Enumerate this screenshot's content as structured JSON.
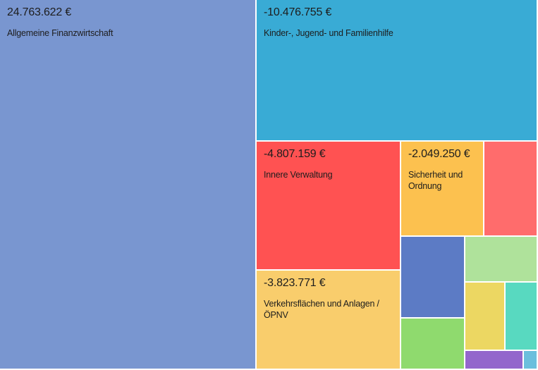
{
  "chart_data": {
    "type": "treemap",
    "title": "",
    "items": [
      {
        "name": "Allgemeine Finanzwirtschaft",
        "value": 24763622,
        "display_value": "24.763.622 €",
        "label": "Allgemeine Finanzwirtschaft",
        "color": "#7996d0"
      },
      {
        "name": "Kinder-, Jugend- und Familienhilfe",
        "value": -10476755,
        "display_value": "-10.476.755 €",
        "label": "Kinder-, Jugend- und Familienhilfe",
        "color": "#39abd5"
      },
      {
        "name": "Innere Verwaltung",
        "value": -4807159,
        "display_value": "-4.807.159 €",
        "label": "Innere Verwaltung",
        "color": "#ff5252"
      },
      {
        "name": "Sicherheit und Ordnung",
        "value": -2049250,
        "display_value": "-2.049.250 €",
        "label": "Sicherheit und Ordnung",
        "color": "#fcc14f"
      },
      {
        "name": "Verkehrsflächen und Anlagen / ÖPNV",
        "value": -3823771,
        "display_value": "-3.823.771 €",
        "label": "Verkehrsflächen und Anlagen / ÖPNV",
        "color": "#f9cd6c"
      },
      {
        "name": "",
        "value": null,
        "display_value": "",
        "label": "",
        "color": "#ff6c6c"
      },
      {
        "name": "",
        "value": null,
        "display_value": "",
        "label": "",
        "color": "#5c7bc5"
      },
      {
        "name": "",
        "value": null,
        "display_value": "",
        "label": "",
        "color": "#afe29b"
      },
      {
        "name": "",
        "value": null,
        "display_value": "",
        "label": "",
        "color": "#ecd762"
      },
      {
        "name": "",
        "value": null,
        "display_value": "",
        "label": "",
        "color": "#58d9c0"
      },
      {
        "name": "",
        "value": null,
        "display_value": "",
        "label": "",
        "color": "#8fda6e"
      },
      {
        "name": "",
        "value": null,
        "display_value": "",
        "label": "",
        "color": "#9366cc"
      },
      {
        "name": "",
        "value": null,
        "display_value": "",
        "label": "",
        "color": "#6bbfdd"
      }
    ]
  }
}
